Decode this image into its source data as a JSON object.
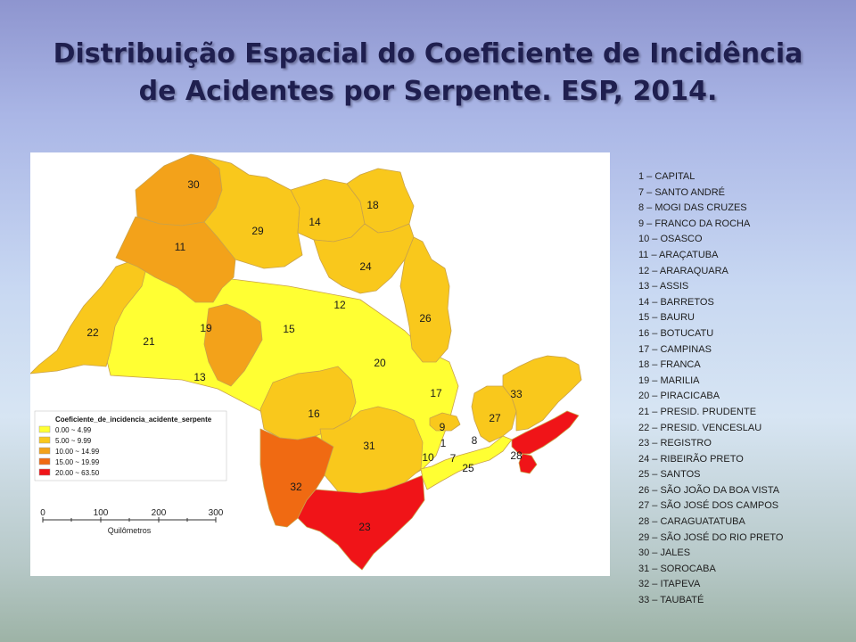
{
  "title": {
    "line1": "Distribuição Espacial  do Coeficiente de Incidência",
    "line2": "de Acidentes por Serpente. ESP, 2014."
  },
  "legend": {
    "title": "Coeficiente_de_incidencia_acidente_serpente",
    "items": [
      {
        "label": "0.00 ~ 4.99",
        "color": "#ffff33"
      },
      {
        "label": "5.00 ~ 9.99",
        "color": "#f9c81c"
      },
      {
        "label": "10.00 ~ 14.99",
        "color": "#f3a21a"
      },
      {
        "label": "15.00 ~ 19.99",
        "color": "#f06a12"
      },
      {
        "label": "20.00 ~ 63.50",
        "color": "#f01418"
      }
    ]
  },
  "scale_bar": {
    "ticks": [
      "0",
      "100",
      "200",
      "300"
    ],
    "unit": "Quilômetros"
  },
  "map_labels": {
    "r1": "1",
    "r7": "7",
    "r8": "8",
    "r9": "9",
    "r10": "10",
    "r11": "11",
    "r12": "12",
    "r13": "13",
    "r14": "14",
    "r15": "15",
    "r16": "16",
    "r17": "17",
    "r18": "18",
    "r19": "19",
    "r20": "20",
    "r21": "21",
    "r22": "22",
    "r23": "23",
    "r24": "24",
    "r25": "25",
    "r26": "26",
    "r27": "27",
    "r28": "28",
    "r29": "29",
    "r30": "30",
    "r31": "31",
    "r32": "32",
    "r33": "33"
  },
  "region_list": [
    "1 – CAPITAL",
    "7 – SANTO ANDRÉ",
    "8 – MOGI DAS CRUZES",
    "9 – FRANCO DA ROCHA",
    "10 – OSASCO",
    "11 – ARAÇATUBA",
    "12 – ARARAQUARA",
    "13 – ASSIS",
    "14 – BARRETOS",
    "15 – BAURU",
    "16 – BOTUCATU",
    "17 – CAMPINAS",
    "18 – FRANCA",
    "19 – MARILIA",
    "20 – PIRACICABA",
    "21 – PRESID. PRUDENTE",
    "22 – PRESID. VENCESLAU",
    "23 – REGISTRO",
    "24 – RIBEIRÃO PRETO",
    "25 – SANTOS",
    "26 – SÃO JOÃO DA BOA VISTA",
    "27 – SÃO JOSÉ DOS CAMPOS",
    "28 – CARAGUATATUBA",
    "29 – SÃO JOSÉ DO RIO PRETO",
    "30 – JALES",
    "31 – SOROCABA",
    "32 – ITAPEVA",
    "33 – TAUBATÉ"
  ],
  "colors": {
    "class1": "#ffff33",
    "class2": "#f9c81c",
    "class3": "#f3a21a",
    "class4": "#f06a12",
    "class5": "#f01418",
    "border": "#c9a24a"
  }
}
